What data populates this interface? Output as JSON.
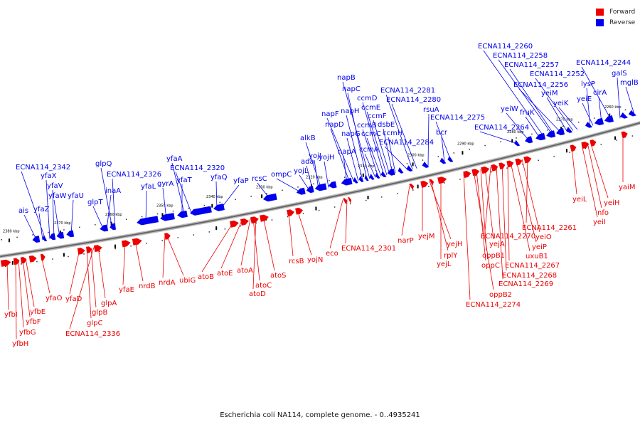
{
  "colors": {
    "forward": "#ee0000",
    "reverse": "#0000ee",
    "backbone": "#666666",
    "tick": "#000000"
  },
  "legend": [
    {
      "label": "Forward",
      "color": "#ee0000"
    },
    {
      "label": "Reverse",
      "color": "#0000ee"
    }
  ],
  "caption": "Escherichia coli NA114, complete genome. - 0..4935241",
  "ticks": [
    "2380 kbp",
    "2370 kbp",
    "2360 kbp",
    "2350 kbp",
    "2340 kbp",
    "2330 kbp",
    "2320 kbp",
    "2310 kbp",
    "2300 kbp",
    "2290 kbp",
    "2280 kbp",
    "2270 kbp",
    "2260 kbp"
  ],
  "reverse_labels": [
    "ais",
    "yfaZ",
    "ECNA114_2342",
    "yfaX",
    "yfaV",
    "yfaW",
    "yfaU",
    "glpT",
    "inaA",
    "glpQ",
    "ECNA114_2326",
    "yfaL",
    "gyrA",
    "yfaT",
    "yfaA",
    "ECNA114_2320",
    "yfaQ",
    "yfaP",
    "rcsC",
    "ompC",
    "yojL",
    "ada",
    "yojI",
    "alkB",
    "yojH",
    "napA",
    "napD",
    "napF",
    "napG",
    "napH",
    "napC",
    "napB",
    "ccmA",
    "ccmB",
    "ccmC",
    "ccmD",
    "ccmE",
    "ccmF",
    "dsbE",
    "ccmH",
    "ECNA114_2284",
    "ECNA114_2281",
    "ECNA114_2280",
    "rsuA",
    "bcr",
    "ECNA114_2275",
    "ECNA114_2264",
    "yeiW",
    "fruK",
    "ECNA114_2260",
    "ECNA114_2258",
    "ECNA114_2257",
    "ECNA114_2256",
    "yeiM",
    "ECNA114_2252",
    "yeiK",
    "lysP",
    "yeiE",
    "cirA",
    "ECNA114_2244",
    "galS",
    "mglB"
  ],
  "forward_labels": [
    "yfbI",
    "yfbH",
    "yfbG",
    "yfbF",
    "yfbE",
    "yfaO",
    "yfaD",
    "glpC",
    "glpB",
    "ECNA114_2336",
    "glpA",
    "yfaE",
    "nrdB",
    "nrdA",
    "ubiG",
    "atoB",
    "atoE",
    "atoA",
    "atoC",
    "atoD",
    "atoS",
    "rcsB",
    "yojN",
    "eco",
    "ECNA114_2301",
    "narP",
    "yejM",
    "yejH",
    "rplY",
    "yejL",
    "ECNA114_2274",
    "oppB2",
    "oppC",
    "oppB1",
    "yejA",
    "ECNA114_2270",
    "ECNA114_2269",
    "ECNA114_2268",
    "ECNA114_2267",
    "uxuB1",
    "yeiP",
    "yeiO",
    "ECNA114_2261",
    "yeiL",
    "yeiI",
    "nfo",
    "yeiH",
    "yaiM"
  ]
}
